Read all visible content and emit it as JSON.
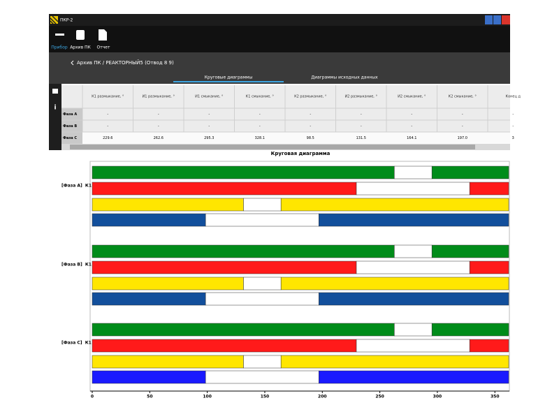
{
  "window": {
    "title": "ПКР-2"
  },
  "toolbar": [
    "Прибор",
    "Архив ПК",
    "Отчет"
  ],
  "breadcrumb": "Архив ПК / РЕАКТОРНЫЙ5 (Отвод 8 9)",
  "tabs": [
    "Круговые диаграммы",
    "Диаграммы исходных данных"
  ],
  "table": {
    "headers": [
      "К1 размыкание, °",
      "И1 размыкание, °",
      "И1 смыкание, °",
      "К1 смыкание, °",
      "К2 размыкание, °",
      "И2 размыкание, °",
      "И2 смыкание, °",
      "К2 смыкание, °",
      "Конец д"
    ],
    "rows": [
      {
        "label": "Фаза А",
        "cells": [
          "-",
          "-",
          "-",
          "-",
          "-",
          "-",
          "-",
          "-",
          "-"
        ]
      },
      {
        "label": "Фаза В",
        "cells": [
          "-",
          "-",
          "-",
          "-",
          "-",
          "-",
          "-",
          "-",
          "-"
        ]
      },
      {
        "label": "Фаза С",
        "cells": [
          "229.6",
          "262.6",
          "295.3",
          "328.1",
          "98.5",
          "131.5",
          "164.1",
          "197.0",
          "3"
        ]
      }
    ]
  },
  "chart_data": {
    "type": "interval",
    "title": "Круговая диаграмма",
    "xlim": [
      0,
      362
    ],
    "xticks": [
      0,
      50,
      100,
      150,
      200,
      250,
      300,
      350
    ],
    "groups": [
      {
        "name": "[Фаза А]  К1",
        "bars": [
          {
            "color": "#008c1a",
            "start": 262.6,
            "end": 295.3
          },
          {
            "color": "#ff1a1a",
            "start": 229.6,
            "end": 328.1
          },
          {
            "color": "#ffe600",
            "start": 131.5,
            "end": 164.1
          },
          {
            "color": "#124f9c",
            "start": 98.5,
            "end": 197
          }
        ]
      },
      {
        "name": "[Фаза В]  К1",
        "bars": [
          {
            "color": "#008c1a",
            "start": 262.6,
            "end": 295.3
          },
          {
            "color": "#ff1a1a",
            "start": 229.6,
            "end": 328.1
          },
          {
            "color": "#ffe600",
            "start": 131.5,
            "end": 164.1
          },
          {
            "color": "#124f9c",
            "start": 98.5,
            "end": 197
          }
        ]
      },
      {
        "name": "[Фаза С]  К1",
        "bars": [
          {
            "color": "#008c1a",
            "start": 262.6,
            "end": 295.3
          },
          {
            "color": "#ff1a1a",
            "start": 229.6,
            "end": 328.1
          },
          {
            "color": "#ffe600",
            "start": 131.5,
            "end": 164.1
          },
          {
            "color": "#1a1aff",
            "start": 98.5,
            "end": 197
          }
        ]
      }
    ]
  }
}
